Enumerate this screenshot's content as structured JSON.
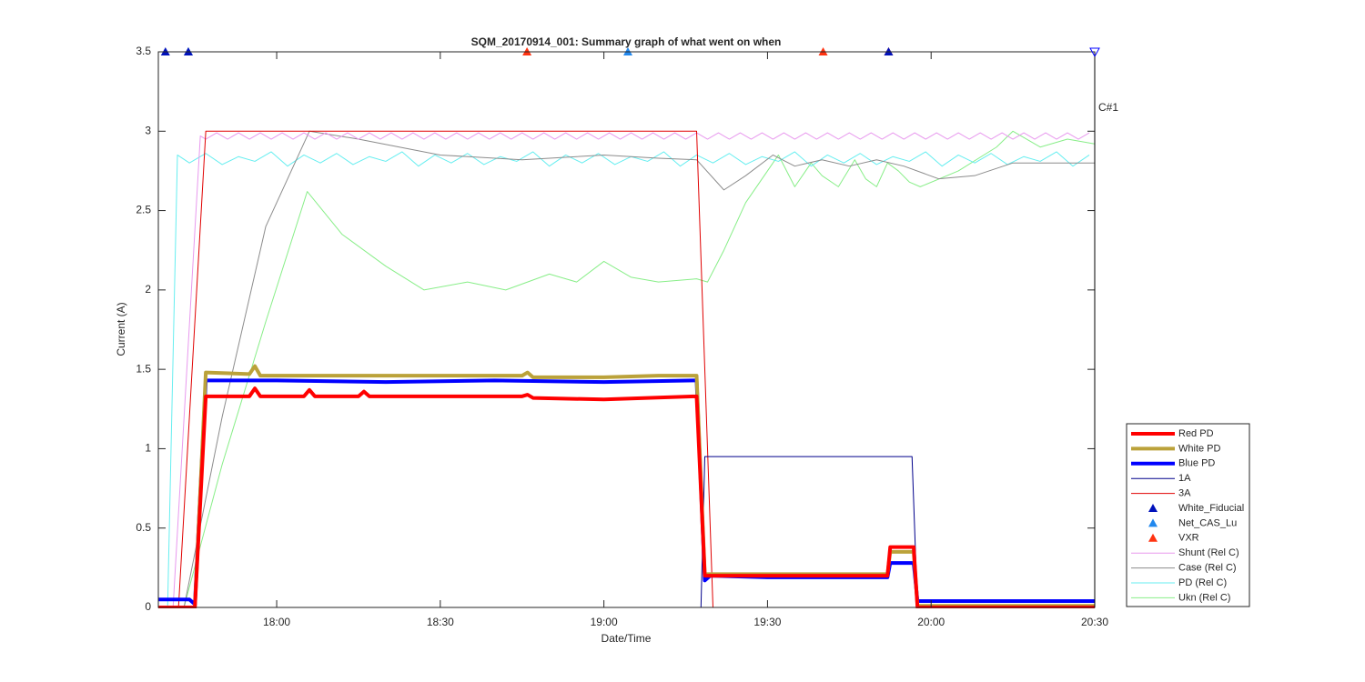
{
  "chart_data": {
    "type": "line",
    "title": "SQM_20170914_001: Summary graph of what went on when",
    "xlabel": "Date/Time",
    "ylabel": "Current (A)",
    "annotation": "C#1",
    "xlim": [
      1058.3,
      1230
    ],
    "xticks": [
      {
        "value": 1080,
        "label": "18:00"
      },
      {
        "value": 1110,
        "label": "18:30"
      },
      {
        "value": 1140,
        "label": "19:00"
      },
      {
        "value": 1170,
        "label": "19:30"
      },
      {
        "value": 1200,
        "label": "20:00"
      },
      {
        "value": 1230,
        "label": "20:30"
      }
    ],
    "ylim": [
      0,
      3.5
    ],
    "yticks": [
      0,
      0.5,
      1,
      1.5,
      2,
      2.5,
      3,
      3.5
    ],
    "grid": false,
    "legend": "southeastoutside",
    "series": [
      {
        "name": "Red PD",
        "color": "#ff0000",
        "line_width": 4,
        "x": [
          1058.3,
          1065,
          1067,
          1075,
          1076,
          1077,
          1085,
          1086,
          1087,
          1095,
          1096,
          1097,
          1110,
          1125,
          1126,
          1127,
          1140,
          1157,
          1158.5,
          1170,
          1192,
          1192.5,
          1196.8,
          1197.5,
          1230
        ],
        "values": [
          0,
          0,
          1.33,
          1.33,
          1.38,
          1.33,
          1.33,
          1.37,
          1.33,
          1.33,
          1.36,
          1.33,
          1.33,
          1.33,
          1.34,
          1.32,
          1.31,
          1.33,
          0.2,
          0.2,
          0.2,
          0.38,
          0.38,
          0,
          0
        ]
      },
      {
        "name": "White PD",
        "color": "#bba23a",
        "line_width": 4,
        "x": [
          1058.3,
          1065,
          1067,
          1075,
          1076,
          1077,
          1100,
          1125,
          1126,
          1127,
          1140,
          1150,
          1157,
          1158.5,
          1170,
          1192,
          1192.5,
          1196.8,
          1197.5,
          1230
        ],
        "values": [
          0,
          0,
          1.48,
          1.47,
          1.52,
          1.46,
          1.46,
          1.46,
          1.48,
          1.45,
          1.45,
          1.46,
          1.46,
          0.21,
          0.21,
          0.21,
          0.35,
          0.35,
          0.01,
          0.01
        ]
      },
      {
        "name": "Blue PD",
        "color": "#0000ff",
        "line_width": 4,
        "x": [
          1058.3,
          1064,
          1065,
          1067,
          1080,
          1100,
          1120,
          1140,
          1157,
          1158.5,
          1159.5,
          1170,
          1192,
          1192.5,
          1196.8,
          1197.5,
          1230
        ],
        "values": [
          0.05,
          0.05,
          0.02,
          1.43,
          1.43,
          1.42,
          1.43,
          1.42,
          1.43,
          0.17,
          0.2,
          0.19,
          0.19,
          0.28,
          0.28,
          0.04,
          0.04
        ]
      },
      {
        "name": "1A",
        "color": "#00008b",
        "line_width": 1,
        "x": [
          1058.3,
          1157.8,
          1158.5,
          1196.5,
          1197.5,
          1230
        ],
        "values": [
          0,
          0,
          0.95,
          0.95,
          0,
          0
        ]
      },
      {
        "name": "3A",
        "color": "#e00000",
        "line_width": 1,
        "x": [
          1058.3,
          1062,
          1067,
          1157,
          1160,
          1230
        ],
        "values": [
          0,
          0,
          3,
          3,
          0,
          0
        ]
      },
      {
        "name": "White_Fiducial",
        "color": "#0011bb",
        "marker": "triangle",
        "x": [
          1059.6,
          1063.8,
          1192.2
        ],
        "values": [
          3.5,
          3.5,
          3.5
        ]
      },
      {
        "name": "Net_CAS_Lu",
        "color": "#2288ee",
        "marker": "triangle",
        "x": [
          1063.8,
          1144.4
        ],
        "values": [
          3.5,
          3.5
        ]
      },
      {
        "name": "VXR",
        "color": "#ff3311",
        "marker": "triangle",
        "x": [
          1125.9,
          1180.2,
          1192.2
        ],
        "values": [
          3.5,
          3.5,
          3.5
        ]
      },
      {
        "name": "Shunt (Rel C)",
        "color": "#e899ee",
        "line_width": 1,
        "x": [
          1058.3,
          1061,
          1066,
          1067,
          1069,
          1071,
          1073,
          1075,
          1077,
          1079,
          1081,
          1083,
          1085,
          1087,
          1089,
          1091,
          1093,
          1095,
          1097,
          1099,
          1101,
          1103,
          1105,
          1107,
          1109,
          1111,
          1113,
          1115,
          1117,
          1119,
          1121,
          1123,
          1125,
          1127,
          1129,
          1131,
          1133,
          1135,
          1137,
          1139,
          1141,
          1143,
          1145,
          1147,
          1149,
          1151,
          1153,
          1155,
          1157,
          1159,
          1161,
          1163,
          1165,
          1167,
          1169,
          1171,
          1173,
          1175,
          1177,
          1179,
          1181,
          1183,
          1185,
          1187,
          1189,
          1191,
          1193,
          1195,
          1197,
          1199,
          1201,
          1203,
          1205,
          1207,
          1209,
          1211,
          1213,
          1215,
          1217,
          1219,
          1221,
          1223,
          1225,
          1227,
          1229
        ],
        "values": [
          0,
          0,
          2.97,
          2.95,
          2.99,
          2.95,
          2.99,
          2.95,
          2.99,
          2.95,
          2.99,
          2.95,
          2.99,
          2.95,
          2.99,
          2.95,
          2.99,
          2.95,
          2.99,
          2.95,
          2.99,
          2.95,
          2.99,
          2.95,
          2.99,
          2.95,
          2.99,
          2.95,
          2.99,
          2.95,
          2.99,
          2.95,
          2.99,
          2.95,
          2.99,
          2.95,
          2.99,
          2.95,
          2.99,
          2.95,
          2.99,
          2.95,
          2.99,
          2.95,
          2.99,
          2.95,
          2.99,
          2.95,
          2.99,
          2.95,
          2.99,
          2.95,
          2.99,
          2.95,
          2.99,
          2.95,
          2.99,
          2.95,
          2.99,
          2.95,
          2.99,
          2.95,
          2.99,
          2.95,
          2.99,
          2.95,
          2.99,
          2.95,
          2.99,
          2.95,
          2.99,
          2.95,
          2.99,
          2.95,
          2.99,
          2.95,
          2.99,
          2.95,
          2.99,
          2.95,
          2.99,
          2.95,
          2.99,
          2.95,
          2.99
        ]
      },
      {
        "name": "Case (Rel C)",
        "color": "#8c8c8c",
        "line_width": 1,
        "x": [
          1058.3,
          1063,
          1070,
          1078,
          1086,
          1095,
          1110,
          1125,
          1140,
          1150,
          1157,
          1162,
          1166,
          1171,
          1175,
          1180,
          1185,
          1190,
          1195,
          1201.4,
          1208,
          1215,
          1222,
          1230
        ],
        "values": [
          0,
          0,
          1.2,
          2.4,
          3,
          2.95,
          2.85,
          2.82,
          2.85,
          2.83,
          2.82,
          2.63,
          2.72,
          2.85,
          2.78,
          2.82,
          2.78,
          2.82,
          2.78,
          2.7,
          2.72,
          2.8,
          2.8,
          2.8
        ]
      },
      {
        "name": "PD (Rel C)",
        "color": "#66eef0",
        "line_width": 1,
        "x": [
          1058.3,
          1060,
          1061.8,
          1064,
          1067,
          1070,
          1073,
          1076,
          1079,
          1082,
          1085,
          1088,
          1091,
          1094,
          1097,
          1100,
          1103,
          1106,
          1109,
          1112,
          1115,
          1118,
          1121,
          1124,
          1127,
          1130,
          1133,
          1136,
          1139,
          1142,
          1145,
          1148,
          1151,
          1154,
          1157,
          1160,
          1163,
          1166,
          1169,
          1172,
          1175,
          1178,
          1181,
          1184,
          1187,
          1190,
          1193,
          1196,
          1199,
          1202,
          1205,
          1208,
          1211,
          1214,
          1217,
          1220,
          1223,
          1226,
          1229
        ],
        "values": [
          0,
          0,
          2.85,
          2.8,
          2.86,
          2.79,
          2.84,
          2.81,
          2.87,
          2.78,
          2.85,
          2.8,
          2.86,
          2.79,
          2.84,
          2.81,
          2.87,
          2.78,
          2.85,
          2.8,
          2.86,
          2.79,
          2.84,
          2.81,
          2.87,
          2.78,
          2.85,
          2.8,
          2.86,
          2.79,
          2.84,
          2.81,
          2.87,
          2.78,
          2.85,
          2.8,
          2.86,
          2.79,
          2.84,
          2.81,
          2.87,
          2.78,
          2.85,
          2.8,
          2.86,
          2.79,
          2.84,
          2.81,
          2.87,
          2.78,
          2.85,
          2.8,
          2.86,
          2.79,
          2.84,
          2.81,
          2.87,
          2.78,
          2.85
        ]
      },
      {
        "name": "Ukn (Rel C)",
        "color": "#88ee88",
        "line_width": 1,
        "x": [
          1058.3,
          1063,
          1070,
          1078,
          1085.6,
          1092,
          1100,
          1107,
          1115,
          1122,
          1130,
          1135,
          1140,
          1145,
          1150,
          1157,
          1159,
          1162,
          1166,
          1170,
          1172,
          1175,
          1178,
          1180,
          1183,
          1186,
          1188,
          1190,
          1192,
          1194,
          1196,
          1198,
          1205,
          1212,
          1215,
          1220,
          1225,
          1230
        ],
        "values": [
          0,
          0,
          0.9,
          1.8,
          2.62,
          2.35,
          2.15,
          2,
          2.05,
          2,
          2.1,
          2.05,
          2.18,
          2.08,
          2.05,
          2.07,
          2.05,
          2.25,
          2.55,
          2.75,
          2.85,
          2.65,
          2.8,
          2.72,
          2.65,
          2.82,
          2.7,
          2.65,
          2.8,
          2.75,
          2.68,
          2.65,
          2.75,
          2.9,
          3,
          2.9,
          2.95,
          2.92
        ]
      }
    ]
  }
}
